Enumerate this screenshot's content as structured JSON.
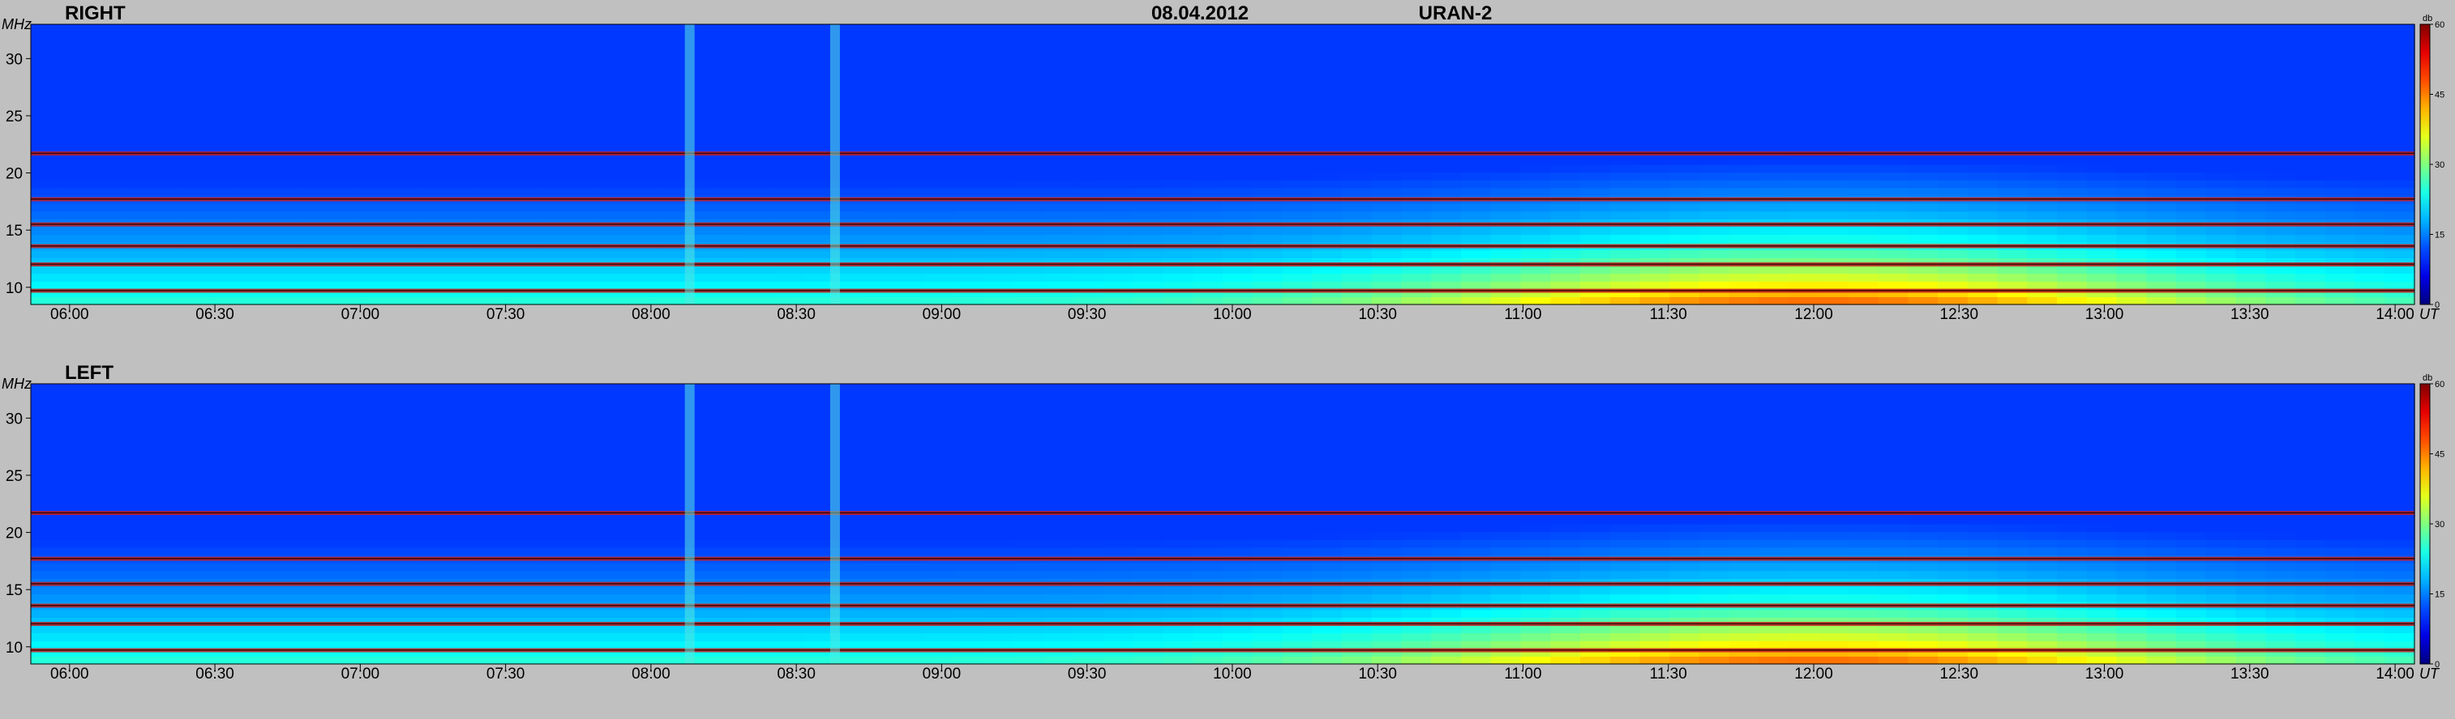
{
  "header": {
    "date": "08.04.2012",
    "station": "URAN-2"
  },
  "colors": {
    "background": "#c0c0c0",
    "axis": "#000000"
  },
  "chart_data": [
    {
      "type": "heatmap",
      "title": "RIGHT",
      "ylabel": "MHz",
      "xlabel": "UT",
      "ylim": [
        8.5,
        33
      ],
      "xlim": [
        "05:52",
        "14:04"
      ],
      "y_ticks": [
        "10",
        "15",
        "20",
        "25",
        "30"
      ],
      "x_ticks": [
        "06:00",
        "06:30",
        "07:00",
        "07:30",
        "08:00",
        "08:30",
        "09:00",
        "09:30",
        "10:00",
        "10:30",
        "11:00",
        "11:30",
        "12:00",
        "12:30",
        "13:00",
        "13:30",
        "14:00"
      ],
      "colorbar": {
        "unit": "db",
        "ticks": [
          "60",
          "45",
          "30",
          "15",
          "0"
        ],
        "range": [
          0,
          60
        ]
      },
      "bands_mhz": [
        9.7,
        12.0,
        13.6,
        15.5,
        17.7,
        21.7
      ],
      "bursts_ut": [
        "08:08",
        "08:38"
      ],
      "intensity_peak_ut": "12:00"
    },
    {
      "type": "heatmap",
      "title": "LEFT",
      "ylabel": "MHz",
      "xlabel": "UT",
      "ylim": [
        8.5,
        33
      ],
      "xlim": [
        "05:52",
        "14:04"
      ],
      "y_ticks": [
        "10",
        "15",
        "20",
        "25",
        "30"
      ],
      "x_ticks": [
        "06:00",
        "06:30",
        "07:00",
        "07:30",
        "08:00",
        "08:30",
        "09:00",
        "09:30",
        "10:00",
        "10:30",
        "11:00",
        "11:30",
        "12:00",
        "12:30",
        "13:00",
        "13:30",
        "14:00"
      ],
      "colorbar": {
        "unit": "db",
        "ticks": [
          "60",
          "45",
          "30",
          "15",
          "0"
        ],
        "range": [
          0,
          60
        ]
      },
      "bands_mhz": [
        9.7,
        12.0,
        13.6,
        15.5,
        17.7,
        21.7
      ],
      "bursts_ut": [
        "08:08",
        "08:38"
      ],
      "intensity_peak_ut": "12:00"
    }
  ]
}
